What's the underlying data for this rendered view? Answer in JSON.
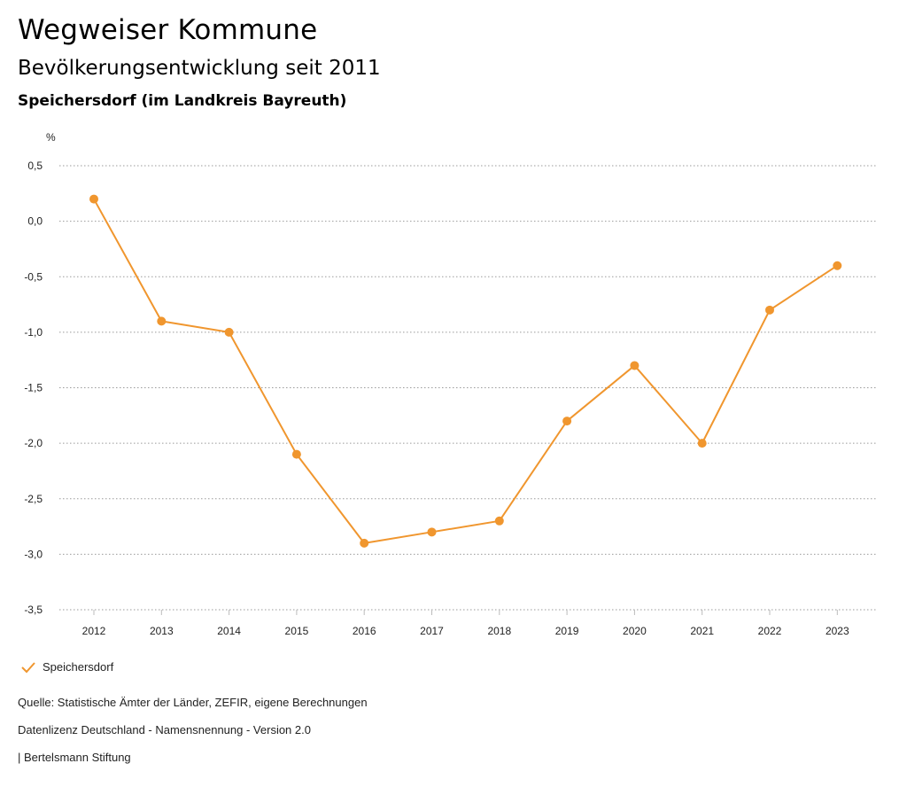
{
  "header": {
    "title": "Wegweiser Kommune",
    "subtitle": "Bevölkerungsentwicklung seit 2011",
    "place": "Speichersdorf (im Landkreis Bayreuth)"
  },
  "legend": {
    "label": "Speichersdorf",
    "icon": "check-icon"
  },
  "footer": {
    "source": "Quelle: Statistische Ämter der Länder, ZEFIR, eigene Berechnungen",
    "license": "Datenlizenz Deutschland - Namensnennung - Version 2.0",
    "publisher": "| Bertelsmann Stiftung"
  },
  "colors": {
    "series": "#f0962e",
    "grid": "#9a9a9a"
  },
  "chart_data": {
    "type": "line",
    "title": "Bevölkerungsentwicklung seit 2011",
    "xlabel": "",
    "ylabel": "%",
    "categories": [
      "2012",
      "2013",
      "2014",
      "2015",
      "2016",
      "2017",
      "2018",
      "2019",
      "2020",
      "2021",
      "2022",
      "2023"
    ],
    "series": [
      {
        "name": "Speichersdorf",
        "values": [
          0.2,
          -0.9,
          -1.0,
          -2.1,
          -2.9,
          -2.8,
          -2.7,
          -1.8,
          -1.3,
          -2.0,
          -0.8,
          -0.4
        ]
      }
    ],
    "ylim": [
      -3.5,
      0.5
    ],
    "yticks": [
      0.5,
      0.0,
      -0.5,
      -1.0,
      -1.5,
      -2.0,
      -2.5,
      -3.0,
      -3.5
    ],
    "ytick_labels": [
      "0,5",
      "0,0",
      "-0,5",
      "-1,0",
      "-1,5",
      "-2,0",
      "-2,5",
      "-3,0",
      "-3,5"
    ],
    "grid": true,
    "legend_position": "bottom-left"
  }
}
